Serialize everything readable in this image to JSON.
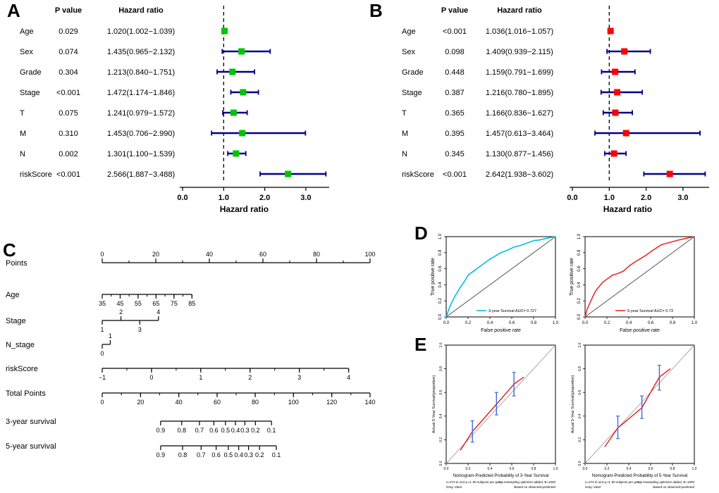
{
  "figure": {
    "panel_labels": {
      "A": "A",
      "B": "B",
      "C": "C",
      "D": "D",
      "E": "E"
    },
    "background": "#ffffff"
  },
  "colors": {
    "axis": "#000000",
    "ci_bar": "#00008B",
    "forest_a_marker": "#00C400",
    "forest_b_marker": "#FF0000",
    "roc_3yr": "#00BFDF",
    "roc_5yr": "#EE2C2C",
    "roc_diagonal": "#555555",
    "cal_line": "#E31A1C",
    "cal_error_bar": "#4169E1",
    "cal_ideal": "#AAAAAA"
  },
  "chart_data": [
    {
      "id": "forest_a",
      "type": "forest",
      "panel": "A",
      "col_headers": [
        "P value",
        "Hazard ratio"
      ],
      "xlabel": "Hazard ratio",
      "x_ticks": [
        0,
        1,
        2,
        3
      ],
      "x_tick_labels": [
        "0.0",
        "1.0",
        "2.0",
        "3.0"
      ],
      "xlim": [
        0,
        3.6
      ],
      "ref_line": 1,
      "marker_color_key": "forest_a_marker",
      "rows": [
        {
          "label": "Age",
          "p": "0.029",
          "hr_text": "1.020(1.002−1.039)",
          "hr": 1.02,
          "lo": 1.002,
          "hi": 1.039
        },
        {
          "label": "Sex",
          "p": "0.074",
          "hr_text": "1.435(0.965−2.132)",
          "hr": 1.435,
          "lo": 0.965,
          "hi": 2.132
        },
        {
          "label": "Grade",
          "p": "0.304",
          "hr_text": "1.213(0.840−1.751)",
          "hr": 1.213,
          "lo": 0.84,
          "hi": 1.751
        },
        {
          "label": "Stage",
          "p": "<0.001",
          "hr_text": "1.472(1.174−1.846)",
          "hr": 1.472,
          "lo": 1.174,
          "hi": 1.846
        },
        {
          "label": "T",
          "p": "0.075",
          "hr_text": "1.241(0.979−1.572)",
          "hr": 1.241,
          "lo": 0.979,
          "hi": 1.572
        },
        {
          "label": "M",
          "p": "0.310",
          "hr_text": "1.453(0.706−2.990)",
          "hr": 1.453,
          "lo": 0.706,
          "hi": 2.99
        },
        {
          "label": "N",
          "p": "0.002",
          "hr_text": "1.301(1.100−1.539)",
          "hr": 1.301,
          "lo": 1.1,
          "hi": 1.539
        },
        {
          "label": "riskScore",
          "p": "<0.001",
          "hr_text": "2.566(1.887−3.488)",
          "hr": 2.566,
          "lo": 1.887,
          "hi": 3.488
        }
      ]
    },
    {
      "id": "forest_b",
      "type": "forest",
      "panel": "B",
      "col_headers": [
        "P value",
        "Hazard ratio"
      ],
      "xlabel": "Hazard ratio",
      "x_ticks": [
        0,
        1,
        2,
        3
      ],
      "x_tick_labels": [
        "0.0",
        "1.0",
        "2.0",
        "3.0"
      ],
      "xlim": [
        0,
        3.7
      ],
      "ref_line": 1,
      "marker_color_key": "forest_b_marker",
      "rows": [
        {
          "label": "Age",
          "p": "<0.001",
          "hr_text": "1.036(1.016−1.057)",
          "hr": 1.036,
          "lo": 1.016,
          "hi": 1.057
        },
        {
          "label": "Sex",
          "p": "0.098",
          "hr_text": "1.409(0.939−2.115)",
          "hr": 1.409,
          "lo": 0.939,
          "hi": 2.115
        },
        {
          "label": "Grade",
          "p": "0.448",
          "hr_text": "1.159(0.791−1.699)",
          "hr": 1.159,
          "lo": 0.791,
          "hi": 1.699
        },
        {
          "label": "Stage",
          "p": "0.387",
          "hr_text": "1.216(0.780−1.895)",
          "hr": 1.216,
          "lo": 0.78,
          "hi": 1.895
        },
        {
          "label": "T",
          "p": "0.365",
          "hr_text": "1.166(0.836−1.627)",
          "hr": 1.166,
          "lo": 0.836,
          "hi": 1.627
        },
        {
          "label": "M",
          "p": "0.395",
          "hr_text": "1.457(0.613−3.464)",
          "hr": 1.457,
          "lo": 0.613,
          "hi": 3.464
        },
        {
          "label": "N",
          "p": "0.345",
          "hr_text": "1.130(0.877−1.456)",
          "hr": 1.13,
          "lo": 0.877,
          "hi": 1.456
        },
        {
          "label": "riskScore",
          "p": "<0.001",
          "hr_text": "2.642(1.938−3.602)",
          "hr": 2.642,
          "lo": 1.938,
          "hi": 3.602
        }
      ]
    },
    {
      "id": "nomogram",
      "type": "nomogram",
      "panel": "C",
      "rows": [
        {
          "label": "Points",
          "start": 0,
          "end": 1,
          "minor_divs": 10,
          "ticks": [
            {
              "t": "0",
              "f": 0,
              "s": "a"
            },
            {
              "t": "20",
              "f": 0.2,
              "s": "a"
            },
            {
              "t": "40",
              "f": 0.4,
              "s": "a"
            },
            {
              "t": "60",
              "f": 0.6,
              "s": "a"
            },
            {
              "t": "80",
              "f": 0.8,
              "s": "a"
            },
            {
              "t": "100",
              "f": 1,
              "s": "a"
            }
          ]
        },
        {
          "label": "Age",
          "start": 0,
          "end": 0.335,
          "minor_divs": 10,
          "ticks": [
            {
              "t": "35",
              "f": 0,
              "s": "b"
            },
            {
              "t": "45",
              "f": 0.2,
              "s": "b"
            },
            {
              "t": "55",
              "f": 0.4,
              "s": "b"
            },
            {
              "t": "65",
              "f": 0.6,
              "s": "b"
            },
            {
              "t": "75",
              "f": 0.8,
              "s": "b"
            },
            {
              "t": "85",
              "f": 1,
              "s": "b"
            }
          ]
        },
        {
          "label": "Stage",
          "start": 0,
          "end": 0.21,
          "ticks": [
            {
              "t": "1",
              "f": 0,
              "s": "b"
            },
            {
              "t": "2",
              "f": 0.333,
              "s": "a"
            },
            {
              "t": "3",
              "f": 0.667,
              "s": "b"
            },
            {
              "t": "4",
              "f": 1,
              "s": "a"
            }
          ]
        },
        {
          "label": "N_stage",
          "start": 0,
          "end": 0.03,
          "ticks": [
            {
              "t": "0",
              "f": 0,
              "s": "b"
            },
            {
              "t": "1",
              "f": 1,
              "s": "a"
            }
          ]
        },
        {
          "label": "riskScore",
          "start": 0,
          "end": 0.92,
          "minor_divs": 10,
          "ticks": [
            {
              "t": "−1",
              "f": 0,
              "s": "b"
            },
            {
              "t": "0",
              "f": 0.2,
              "s": "b"
            },
            {
              "t": "1",
              "f": 0.4,
              "s": "b"
            },
            {
              "t": "2",
              "f": 0.6,
              "s": "b"
            },
            {
              "t": "3",
              "f": 0.8,
              "s": "b"
            },
            {
              "t": "4",
              "f": 1,
              "s": "b"
            }
          ]
        },
        {
          "label": "Total Points",
          "start": 0,
          "end": 1,
          "minor_divs": 14,
          "ticks": [
            {
              "t": "0",
              "f": 0,
              "s": "b"
            },
            {
              "t": "20",
              "f": 0.143,
              "s": "b"
            },
            {
              "t": "40",
              "f": 0.286,
              "s": "b"
            },
            {
              "t": "60",
              "f": 0.429,
              "s": "b"
            },
            {
              "t": "80",
              "f": 0.571,
              "s": "b"
            },
            {
              "t": "100",
              "f": 0.714,
              "s": "b"
            },
            {
              "t": "120",
              "f": 0.857,
              "s": "b"
            },
            {
              "t": "140",
              "f": 1,
              "s": "b"
            }
          ]
        },
        {
          "label": "3-year survival",
          "start": 0.218,
          "end": 0.632,
          "ticks": [
            {
              "t": "0.9",
              "f": 0,
              "s": "b"
            },
            {
              "t": "0.8",
              "f": 0.19,
              "s": "b"
            },
            {
              "t": "0.7",
              "f": 0.35,
              "s": "b"
            },
            {
              "t": "0.6",
              "f": 0.48,
              "s": "b"
            },
            {
              "t": "0.5",
              "f": 0.585,
              "s": "b"
            },
            {
              "t": "0.4",
              "f": 0.675,
              "s": "b"
            },
            {
              "t": "0.3",
              "f": 0.76,
              "s": "b"
            },
            {
              "t": "0.2",
              "f": 0.855,
              "s": "b"
            },
            {
              "t": "0.1",
              "f": 1,
              "s": "b"
            }
          ]
        },
        {
          "label": "5-year survival",
          "start": 0.218,
          "end": 0.65,
          "ticks": [
            {
              "t": "0.9",
              "f": 0,
              "s": "b"
            },
            {
              "t": "0.8",
              "f": 0.19,
              "s": "b"
            },
            {
              "t": "0.7",
              "f": 0.35,
              "s": "b"
            },
            {
              "t": "0.6",
              "f": 0.48,
              "s": "b"
            },
            {
              "t": "0.5",
              "f": 0.585,
              "s": "b"
            },
            {
              "t": "0.4",
              "f": 0.675,
              "s": "b"
            },
            {
              "t": "0.3",
              "f": 0.76,
              "s": "b"
            },
            {
              "t": "0.2",
              "f": 0.855,
              "s": "b"
            },
            {
              "t": "0.1",
              "f": 1,
              "s": "b"
            }
          ]
        }
      ]
    },
    {
      "id": "roc",
      "type": "roc",
      "panel": "D",
      "plots": [
        {
          "legend": "3-year Survival AUC= 0.727",
          "color_key": "roc_3yr",
          "xlabel": "False positive rate",
          "ylabel": "True positive rate",
          "xlim": [
            0,
            1
          ],
          "ylim": [
            0,
            1
          ],
          "tick_labels": [
            "0.0",
            "0.2",
            "0.4",
            "0.6",
            "0.8",
            "1.0"
          ],
          "curve": [
            [
              0,
              0
            ],
            [
              0.02,
              0.08
            ],
            [
              0.04,
              0.15
            ],
            [
              0.06,
              0.2
            ],
            [
              0.08,
              0.26
            ],
            [
              0.1,
              0.3
            ],
            [
              0.12,
              0.35
            ],
            [
              0.15,
              0.41
            ],
            [
              0.18,
              0.47
            ],
            [
              0.2,
              0.52
            ],
            [
              0.24,
              0.56
            ],
            [
              0.28,
              0.6
            ],
            [
              0.32,
              0.64
            ],
            [
              0.36,
              0.68
            ],
            [
              0.4,
              0.72
            ],
            [
              0.45,
              0.76
            ],
            [
              0.5,
              0.8
            ],
            [
              0.56,
              0.83
            ],
            [
              0.62,
              0.87
            ],
            [
              0.68,
              0.89
            ],
            [
              0.74,
              0.92
            ],
            [
              0.8,
              0.95
            ],
            [
              0.86,
              0.96
            ],
            [
              0.92,
              0.98
            ],
            [
              1,
              1
            ]
          ]
        },
        {
          "legend": "5-year Survival AUC= 0.73",
          "color_key": "roc_5yr",
          "xlabel": "False positive rate",
          "ylabel": "True positive rate",
          "xlim": [
            0,
            1
          ],
          "ylim": [
            0,
            1
          ],
          "tick_labels": [
            "0.0",
            "0.2",
            "0.4",
            "0.6",
            "0.8",
            "1.0"
          ],
          "curve": [
            [
              0,
              0
            ],
            [
              0.02,
              0.1
            ],
            [
              0.04,
              0.16
            ],
            [
              0.06,
              0.22
            ],
            [
              0.08,
              0.28
            ],
            [
              0.1,
              0.33
            ],
            [
              0.13,
              0.38
            ],
            [
              0.16,
              0.43
            ],
            [
              0.2,
              0.47
            ],
            [
              0.25,
              0.52
            ],
            [
              0.3,
              0.54
            ],
            [
              0.35,
              0.57
            ],
            [
              0.4,
              0.63
            ],
            [
              0.45,
              0.68
            ],
            [
              0.5,
              0.72
            ],
            [
              0.56,
              0.77
            ],
            [
              0.62,
              0.83
            ],
            [
              0.7,
              0.9
            ],
            [
              0.78,
              0.93
            ],
            [
              0.86,
              0.96
            ],
            [
              0.93,
              0.98
            ],
            [
              1,
              1
            ]
          ]
        }
      ]
    },
    {
      "id": "calibration",
      "type": "calibration",
      "panel": "E",
      "plots": [
        {
          "xlabel": "Nomogram-Predicted Probability of 3-Year Survival",
          "ylabel": "Actual 3-Year Survival(proportion)",
          "xlim": [
            0,
            1
          ],
          "ylim": [
            0,
            1
          ],
          "tick_labels": [
            "0.0",
            "0.2",
            "0.4",
            "0.6",
            "0.8",
            "1.0"
          ],
          "line": [
            [
              0.13,
              0.11
            ],
            [
              0.24,
              0.27
            ],
            [
              0.46,
              0.5
            ],
            [
              0.62,
              0.67
            ],
            [
              0.71,
              0.73
            ]
          ],
          "points": [
            {
              "x": 0.24,
              "y": 0.27,
              "lo": 0.18,
              "hi": 0.36
            },
            {
              "x": 0.46,
              "y": 0.5,
              "lo": 0.41,
              "hi": 0.6
            },
            {
              "x": 0.62,
              "y": 0.67,
              "lo": 0.57,
              "hi": 0.77
            }
          ],
          "footnote_left": [
            "n=273 d=113 p=4, 80 subjects per group",
            "Gray: ideal"
          ],
          "footnote_right": [
            "X − resampling optimism added, B=1000",
            "Based on observed-predicted"
          ]
        },
        {
          "xlabel": "Nomogram-Predicted Probability of 5-Year Survival",
          "ylabel": "Actual 5-Year Survival(proportion)",
          "xlim": [
            0,
            1
          ],
          "ylim": [
            0,
            1
          ],
          "tick_labels": [
            "0.0",
            "0.2",
            "0.4",
            "0.6",
            "0.8",
            "1.0"
          ],
          "line": [
            [
              0.18,
              0.14
            ],
            [
              0.3,
              0.3
            ],
            [
              0.52,
              0.47
            ],
            [
              0.68,
              0.73
            ],
            [
              0.78,
              0.8
            ]
          ],
          "points": [
            {
              "x": 0.3,
              "y": 0.3,
              "lo": 0.21,
              "hi": 0.4
            },
            {
              "x": 0.52,
              "y": 0.47,
              "lo": 0.38,
              "hi": 0.57
            },
            {
              "x": 0.68,
              "y": 0.73,
              "lo": 0.62,
              "hi": 0.83
            }
          ],
          "footnote_left": [
            "n=273 d=113 p=4, 80 subjects per group",
            "Gray: ideal"
          ],
          "footnote_right": [
            "X − resampling optimism added, B=1000",
            "Based on observed-predicted"
          ]
        }
      ]
    }
  ]
}
